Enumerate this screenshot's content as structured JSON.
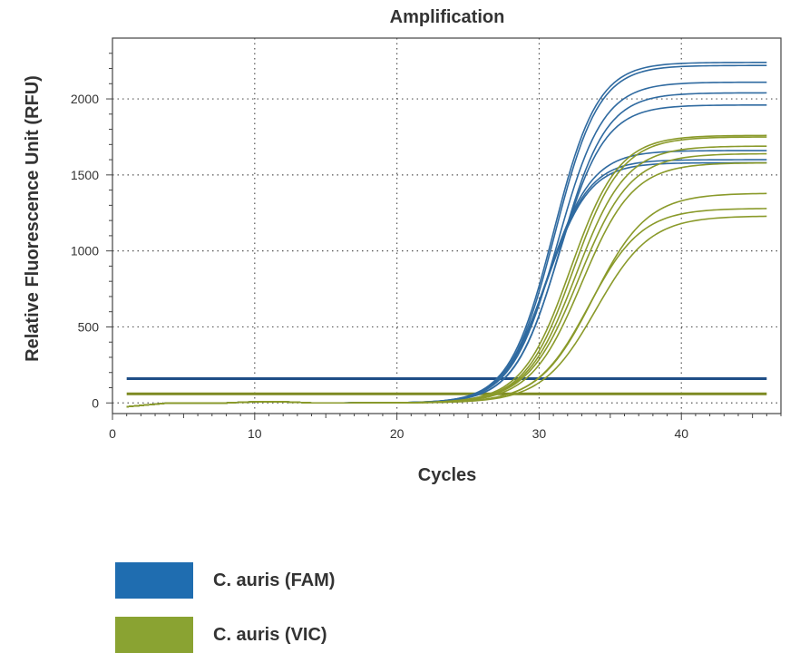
{
  "chart_data": {
    "type": "line",
    "title": "Amplification",
    "xlabel": "Cycles",
    "ylabel": "Relative Fluorescence Unit (RFU)",
    "xlim": [
      0,
      47
    ],
    "ylim": [
      -70,
      2400
    ],
    "xticks": [
      0,
      10,
      20,
      30,
      40
    ],
    "yticks": [
      0,
      500,
      1000,
      1500,
      2000
    ],
    "grid": true,
    "legend_position": "bottom-left",
    "thresholds": [
      {
        "series": "C. auris (FAM)",
        "value": 160
      },
      {
        "series": "C. auris (VIC)",
        "value": 60
      }
    ],
    "series": [
      {
        "name": "C. auris (FAM)",
        "color": "#2f6aa0",
        "legend_color": "#1f6db0",
        "curves": [
          {
            "plateau": 2240,
            "midpoint": 31.0,
            "slope": 1.55
          },
          {
            "plateau": 2220,
            "midpoint": 31.1,
            "slope": 1.55
          },
          {
            "plateau": 2110,
            "midpoint": 31.3,
            "slope": 1.6
          },
          {
            "plateau": 2040,
            "midpoint": 31.5,
            "slope": 1.6
          },
          {
            "plateau": 1960,
            "midpoint": 31.4,
            "slope": 1.6
          },
          {
            "plateau": 1660,
            "midpoint": 30.6,
            "slope": 1.55
          },
          {
            "plateau": 1600,
            "midpoint": 30.5,
            "slope": 1.5
          },
          {
            "plateau": 1580,
            "midpoint": 30.5,
            "slope": 1.5
          }
        ]
      },
      {
        "name": "C. auris (VIC)",
        "color": "#8a9a2a",
        "legend_color": "#8aa332",
        "curves": [
          {
            "plateau": 1760,
            "midpoint": 32.2,
            "slope": 1.7
          },
          {
            "plateau": 1750,
            "midpoint": 32.4,
            "slope": 1.7
          },
          {
            "plateau": 1690,
            "midpoint": 32.6,
            "slope": 1.75
          },
          {
            "plateau": 1640,
            "midpoint": 32.8,
            "slope": 1.8
          },
          {
            "plateau": 1580,
            "midpoint": 33.0,
            "slope": 1.8
          },
          {
            "plateau": 1380,
            "midpoint": 33.8,
            "slope": 1.9
          },
          {
            "plateau": 1280,
            "midpoint": 33.5,
            "slope": 1.85
          },
          {
            "plateau": 1230,
            "midpoint": 34.0,
            "slope": 1.9
          }
        ]
      }
    ],
    "cycle_range": [
      1,
      46
    ]
  },
  "legend": {
    "items": [
      {
        "label": "C. auris (FAM)"
      },
      {
        "label": "C. auris (VIC)"
      }
    ]
  }
}
